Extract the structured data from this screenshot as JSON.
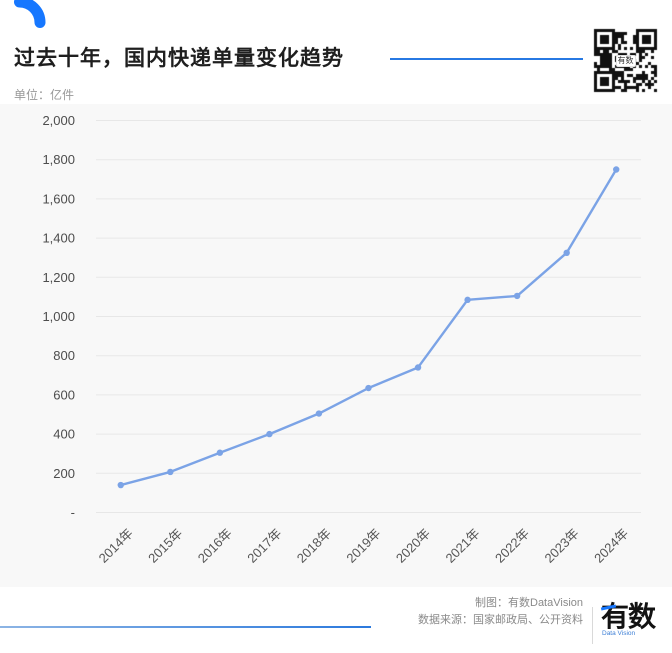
{
  "header": {
    "title": "过去十年，国内快递单量变化趋势",
    "qr_center_label": "有数"
  },
  "chart_data": {
    "type": "line",
    "title": "过去十年，国内快递单量变化趋势",
    "unit_label": "单位：亿件",
    "ylabel": "亿件",
    "categories": [
      "2014年",
      "2015年",
      "2016年",
      "2017年",
      "2018年",
      "2019年",
      "2020年",
      "2021年",
      "2022年",
      "2023年",
      "2024年"
    ],
    "values": [
      140,
      207,
      305,
      400,
      505,
      635,
      740,
      1085,
      1105,
      1325,
      1750
    ],
    "ylim": [
      0,
      2000
    ],
    "ytick_interval": 200,
    "ytick_labels": [
      "-",
      "200",
      "400",
      "600",
      "800",
      "1,000",
      "1,200",
      "1,400",
      "1,600",
      "1,800",
      "2,000"
    ],
    "grid": true,
    "legend": "none",
    "x_label_rotation": -45,
    "line_color": "#7ba3e6",
    "grid_color": "#e7e7e7",
    "tick_label_color": "#4d4d4d"
  },
  "footer": {
    "credit_line1": "制图：有数DataVision",
    "credit_line2": "数据来源：国家邮政局、公开资料",
    "logo_text": "有数",
    "logo_sub": "Data Vision"
  },
  "colors": {
    "accent_blue": "#2779e3",
    "logo_blue": "#1677ff",
    "chart_bg": "#f8f8f8"
  }
}
